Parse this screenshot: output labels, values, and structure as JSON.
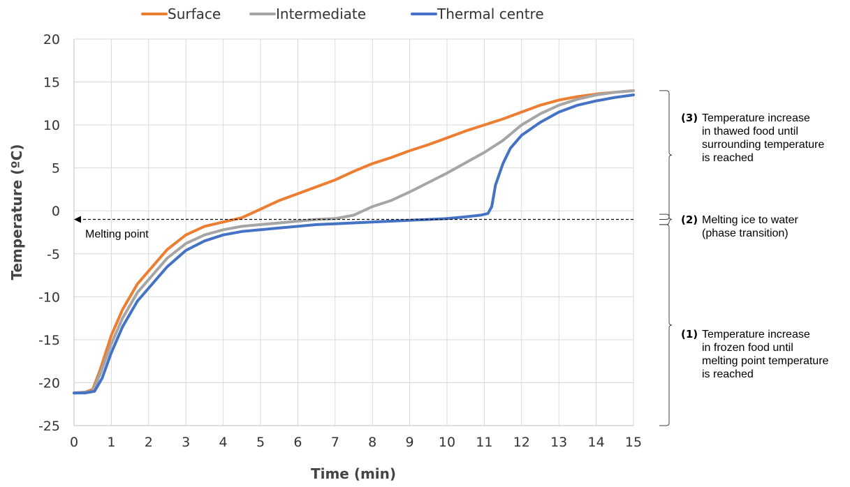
{
  "chart_data": {
    "type": "line",
    "xlabel": "Time (min)",
    "ylabel": "Temperature (ºC)",
    "xlim": [
      0,
      15
    ],
    "ylim": [
      -25,
      20
    ],
    "xticks": [
      0,
      1,
      2,
      3,
      4,
      5,
      6,
      7,
      8,
      9,
      10,
      11,
      12,
      13,
      14,
      15
    ],
    "yticks": [
      -25,
      -20,
      -15,
      -10,
      -5,
      0,
      5,
      10,
      15,
      20
    ],
    "grid": true,
    "legend_position": "top",
    "series": [
      {
        "name": "Surface",
        "color": "#ED7D31",
        "points": [
          [
            0,
            -21.2
          ],
          [
            0.3,
            -21.1
          ],
          [
            0.5,
            -20.8
          ],
          [
            0.7,
            -18.5
          ],
          [
            1.0,
            -14.5
          ],
          [
            1.3,
            -11.5
          ],
          [
            1.7,
            -8.5
          ],
          [
            2.0,
            -7.0
          ],
          [
            2.5,
            -4.5
          ],
          [
            3.0,
            -2.8
          ],
          [
            3.5,
            -1.8
          ],
          [
            4.0,
            -1.3
          ],
          [
            4.5,
            -0.8
          ],
          [
            5.0,
            0.2
          ],
          [
            5.5,
            1.2
          ],
          [
            6.0,
            2.0
          ],
          [
            6.5,
            2.8
          ],
          [
            7.0,
            3.6
          ],
          [
            7.5,
            4.6
          ],
          [
            8.0,
            5.5
          ],
          [
            8.5,
            6.2
          ],
          [
            9.0,
            7.0
          ],
          [
            9.5,
            7.7
          ],
          [
            10.0,
            8.5
          ],
          [
            10.5,
            9.3
          ],
          [
            11.0,
            10.0
          ],
          [
            11.5,
            10.7
          ],
          [
            12.0,
            11.5
          ],
          [
            12.5,
            12.3
          ],
          [
            13.0,
            12.9
          ],
          [
            13.5,
            13.3
          ],
          [
            14.0,
            13.6
          ],
          [
            14.5,
            13.8
          ],
          [
            15.0,
            14.0
          ]
        ]
      },
      {
        "name": "Intermediate",
        "color": "#A5A5A5",
        "points": [
          [
            0,
            -21.2
          ],
          [
            0.3,
            -21.1
          ],
          [
            0.5,
            -21.0
          ],
          [
            0.7,
            -19.0
          ],
          [
            1.0,
            -15.5
          ],
          [
            1.3,
            -12.5
          ],
          [
            1.7,
            -9.5
          ],
          [
            2.0,
            -8.0
          ],
          [
            2.5,
            -5.5
          ],
          [
            3.0,
            -3.8
          ],
          [
            3.5,
            -2.8
          ],
          [
            4.0,
            -2.2
          ],
          [
            4.5,
            -1.8
          ],
          [
            5.0,
            -1.6
          ],
          [
            5.5,
            -1.4
          ],
          [
            6.0,
            -1.2
          ],
          [
            6.5,
            -1.0
          ],
          [
            7.0,
            -0.9
          ],
          [
            7.5,
            -0.5
          ],
          [
            8.0,
            0.5
          ],
          [
            8.5,
            1.2
          ],
          [
            9.0,
            2.2
          ],
          [
            9.5,
            3.3
          ],
          [
            10.0,
            4.4
          ],
          [
            10.5,
            5.6
          ],
          [
            11.0,
            6.8
          ],
          [
            11.5,
            8.2
          ],
          [
            12.0,
            10.0
          ],
          [
            12.5,
            11.3
          ],
          [
            13.0,
            12.3
          ],
          [
            13.5,
            13.0
          ],
          [
            14.0,
            13.5
          ],
          [
            14.5,
            13.8
          ],
          [
            15.0,
            14.0
          ]
        ]
      },
      {
        "name": "Thermal centre",
        "color": "#4472C4",
        "points": [
          [
            0,
            -21.2
          ],
          [
            0.3,
            -21.2
          ],
          [
            0.55,
            -21.0
          ],
          [
            0.75,
            -19.5
          ],
          [
            1.0,
            -16.5
          ],
          [
            1.3,
            -13.5
          ],
          [
            1.7,
            -10.5
          ],
          [
            2.0,
            -9.0
          ],
          [
            2.5,
            -6.5
          ],
          [
            3.0,
            -4.6
          ],
          [
            3.5,
            -3.5
          ],
          [
            4.0,
            -2.8
          ],
          [
            4.5,
            -2.4
          ],
          [
            5.0,
            -2.2
          ],
          [
            5.5,
            -2.0
          ],
          [
            6.0,
            -1.8
          ],
          [
            6.5,
            -1.6
          ],
          [
            7.0,
            -1.5
          ],
          [
            8.0,
            -1.3
          ],
          [
            9.0,
            -1.1
          ],
          [
            10.0,
            -0.9
          ],
          [
            10.5,
            -0.7
          ],
          [
            10.9,
            -0.5
          ],
          [
            11.1,
            -0.3
          ],
          [
            11.2,
            0.5
          ],
          [
            11.3,
            3.0
          ],
          [
            11.5,
            5.5
          ],
          [
            11.7,
            7.3
          ],
          [
            12.0,
            8.8
          ],
          [
            12.5,
            10.3
          ],
          [
            13.0,
            11.5
          ],
          [
            13.5,
            12.3
          ],
          [
            14.0,
            12.8
          ],
          [
            14.5,
            13.2
          ],
          [
            15.0,
            13.5
          ]
        ]
      }
    ],
    "reference_line": {
      "y": -1,
      "label": "Melting point",
      "style": "dashed",
      "color": "#000000"
    },
    "annotations": [
      {
        "number": "(3)",
        "lines": [
          "Temperature increase",
          "in thawed food until",
          "surrounding temperature",
          "is reached"
        ],
        "y_range": [
          -1,
          14
        ]
      },
      {
        "number": "(2)",
        "lines": [
          "Melting ice to water",
          "(phase transition)"
        ],
        "y_range": [
          -1.6,
          -0.4
        ]
      },
      {
        "number": "(1)",
        "lines": [
          "Temperature increase",
          "in frozen food until",
          "melting point temperature",
          "is reached"
        ],
        "y_range": [
          -25,
          -1.6
        ]
      }
    ]
  }
}
